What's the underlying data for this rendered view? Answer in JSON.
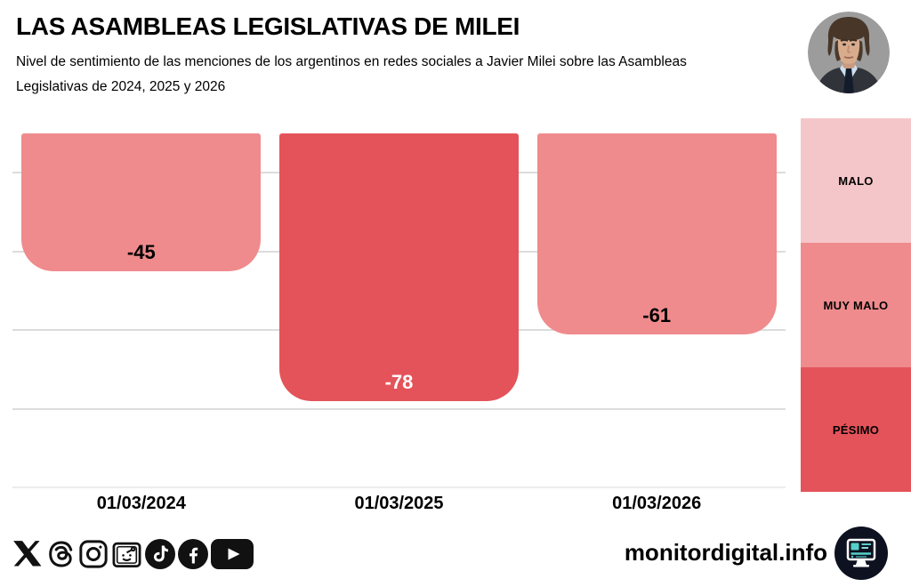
{
  "header": {
    "title": "LAS ASAMBLEAS LEGISLATIVAS DE MILEI",
    "subtitle_line1": "Nivel de sentimiento de las menciones de los argentinos en redes sociales a Javier Milei sobre las Asambleas",
    "subtitle_line2": "Legislativas de 2024, 2025 y 2026"
  },
  "chart_data": {
    "type": "bar",
    "title": "LAS ASAMBLEAS LEGISLATIVAS DE MILEI",
    "categories": [
      "01/03/2024",
      "01/03/2025",
      "01/03/2026"
    ],
    "series": [
      {
        "name": "Nivel de sentimiento",
        "values": [
          -45,
          -78,
          -61
        ]
      }
    ],
    "values": [
      -45,
      -78,
      -61
    ],
    "bar_colors": [
      "#EF8B8D",
      "#E4535A",
      "#EF8B8D"
    ],
    "value_label_colors": [
      "#000000",
      "#FFFFFF",
      "#000000"
    ],
    "ylim": [
      -100,
      -10
    ],
    "gridlines": [
      -20,
      -40,
      -60,
      -80,
      -100
    ],
    "grid": true,
    "xlabel": "",
    "ylabel": "",
    "legend_position": "right",
    "legend_entries": [
      "MALO",
      "MUY MALO",
      "PÉSIMO"
    ]
  },
  "legend": {
    "items": [
      {
        "label": "MALO",
        "color": "#F5C6C9"
      },
      {
        "label": "MUY MALO",
        "color": "#EF8B8D"
      },
      {
        "label": "PÉSIMO",
        "color": "#E4535A"
      }
    ]
  },
  "footer": {
    "site": "monitordigital.info",
    "social_icons": [
      "x-icon",
      "threads-icon",
      "instagram-icon",
      "reddit-icon",
      "tiktok-icon",
      "facebook-icon",
      "youtube-icon"
    ]
  },
  "colors": {
    "background": "#FFFFFF",
    "gridline": "#DCDCDC",
    "text": "#000000",
    "avatar_background": "#9C9C9C",
    "badge_background": "#0D1120",
    "badge_accent": "#56CFCB",
    "icon_black": "#111111"
  }
}
